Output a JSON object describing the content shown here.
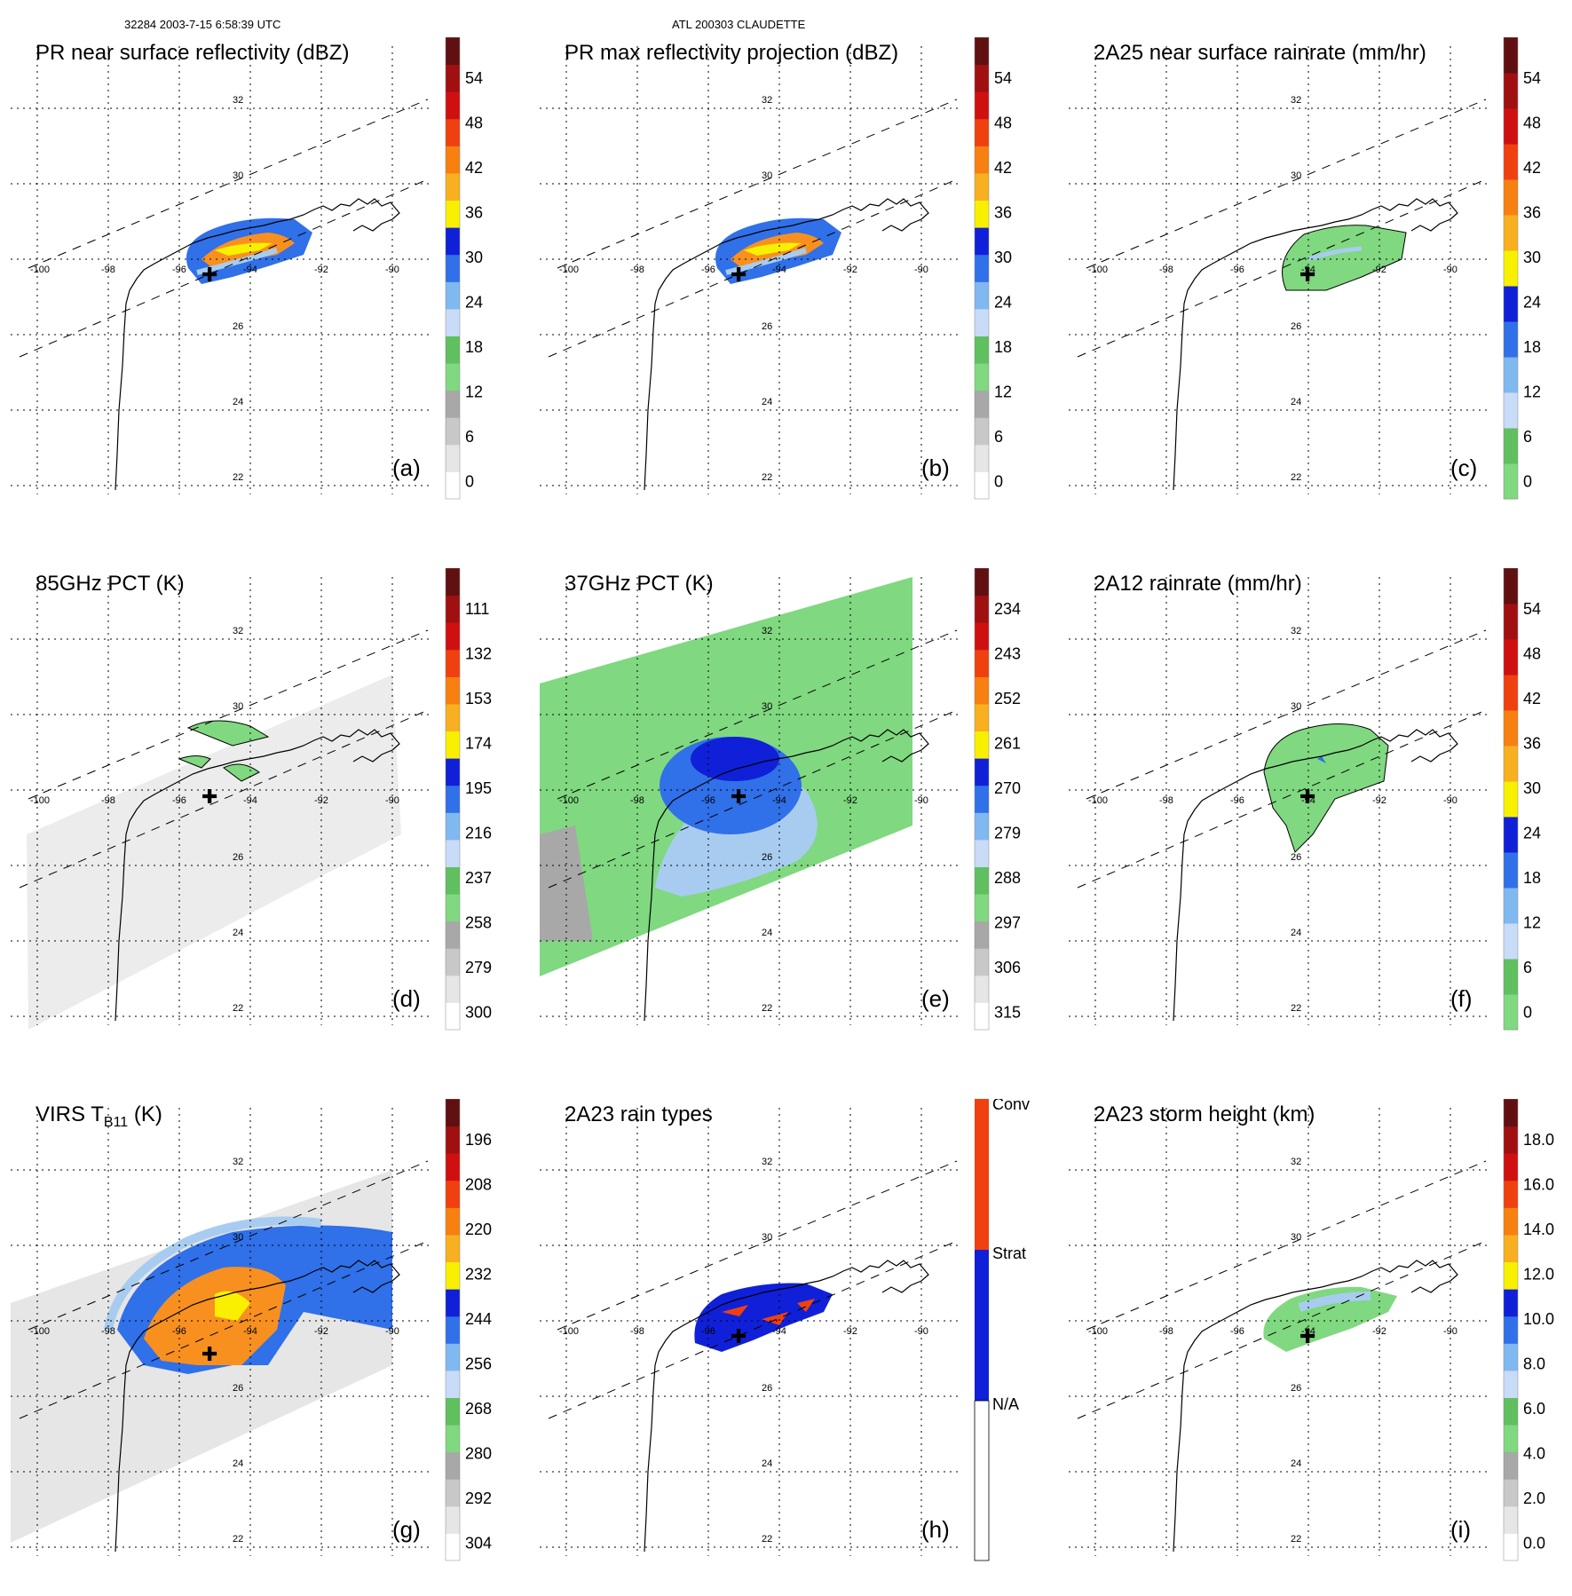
{
  "header": {
    "left": "32284 2003-7-15 6:58:39 UTC",
    "center": "ATL 200303 CLAUDETTE"
  },
  "lat_labels": [
    "32",
    "30",
    "26",
    "24",
    "22"
  ],
  "lon_labels": [
    "-100",
    "-98",
    "-96",
    "-94",
    "-92",
    "-90"
  ],
  "colors": {
    "white": "#ffffff",
    "gray": "#a8a8a8",
    "green": "#80d880",
    "lightblue": "#a8ccf0",
    "blue": "#3070e8",
    "darkblue": "#1020d8",
    "yellow": "#f8f000",
    "orange": "#f89020",
    "red": "#e02010",
    "darkred": "#601010"
  },
  "panels": [
    {
      "id": "a",
      "title": "PR near surface reflectivity (dBZ)",
      "label": "(a)",
      "ticks": [
        "54",
        "48",
        "42",
        "36",
        "30",
        "24",
        "18",
        "12",
        "6",
        "0"
      ],
      "scale": "refl"
    },
    {
      "id": "b",
      "title": "PR max reflectivity projection (dBZ)",
      "label": "(b)",
      "ticks": [
        "54",
        "48",
        "42",
        "36",
        "30",
        "24",
        "18",
        "12",
        "6",
        "0"
      ],
      "scale": "refl"
    },
    {
      "id": "c",
      "title": "2A25 near surface rainrate (mm/hr)",
      "label": "(c)",
      "ticks": [
        "54",
        "48",
        "42",
        "36",
        "30",
        "24",
        "18",
        "12",
        "6",
        "0"
      ],
      "scale": "rain"
    },
    {
      "id": "d",
      "title": "85GHz PCT (K)",
      "label": "(d)",
      "ticks": [
        "111",
        "132",
        "153",
        "174",
        "195",
        "216",
        "237",
        "258",
        "279",
        "300"
      ],
      "scale": "pct"
    },
    {
      "id": "e",
      "title": "37GHz PCT (K)",
      "label": "(e)",
      "ticks": [
        "234",
        "243",
        "252",
        "261",
        "270",
        "279",
        "288",
        "297",
        "306",
        "315"
      ],
      "scale": "pct"
    },
    {
      "id": "f",
      "title": "2A12 rainrate (mm/hr)",
      "label": "(f)",
      "ticks": [
        "54",
        "48",
        "42",
        "36",
        "30",
        "24",
        "18",
        "12",
        "6",
        "0"
      ],
      "scale": "rain"
    },
    {
      "id": "g",
      "title": "VIRS T",
      "title_sub": "B11",
      "title_unit": " (K)",
      "label": "(g)",
      "ticks": [
        "196",
        "208",
        "220",
        "232",
        "244",
        "256",
        "268",
        "280",
        "292",
        "304"
      ],
      "scale": "pct"
    },
    {
      "id": "h",
      "title": "2A23 rain types",
      "label": "(h)",
      "ticks": [
        "Conv",
        "Strat",
        "N/A"
      ],
      "scale": "types"
    },
    {
      "id": "i",
      "title": "2A23 storm height (km)",
      "label": "(i)",
      "ticks": [
        "18.0",
        "16.0",
        "14.0",
        "12.0",
        "10.0",
        "8.0",
        "6.0",
        "4.0",
        "2.0",
        "0.0"
      ],
      "scale": "height"
    }
  ]
}
